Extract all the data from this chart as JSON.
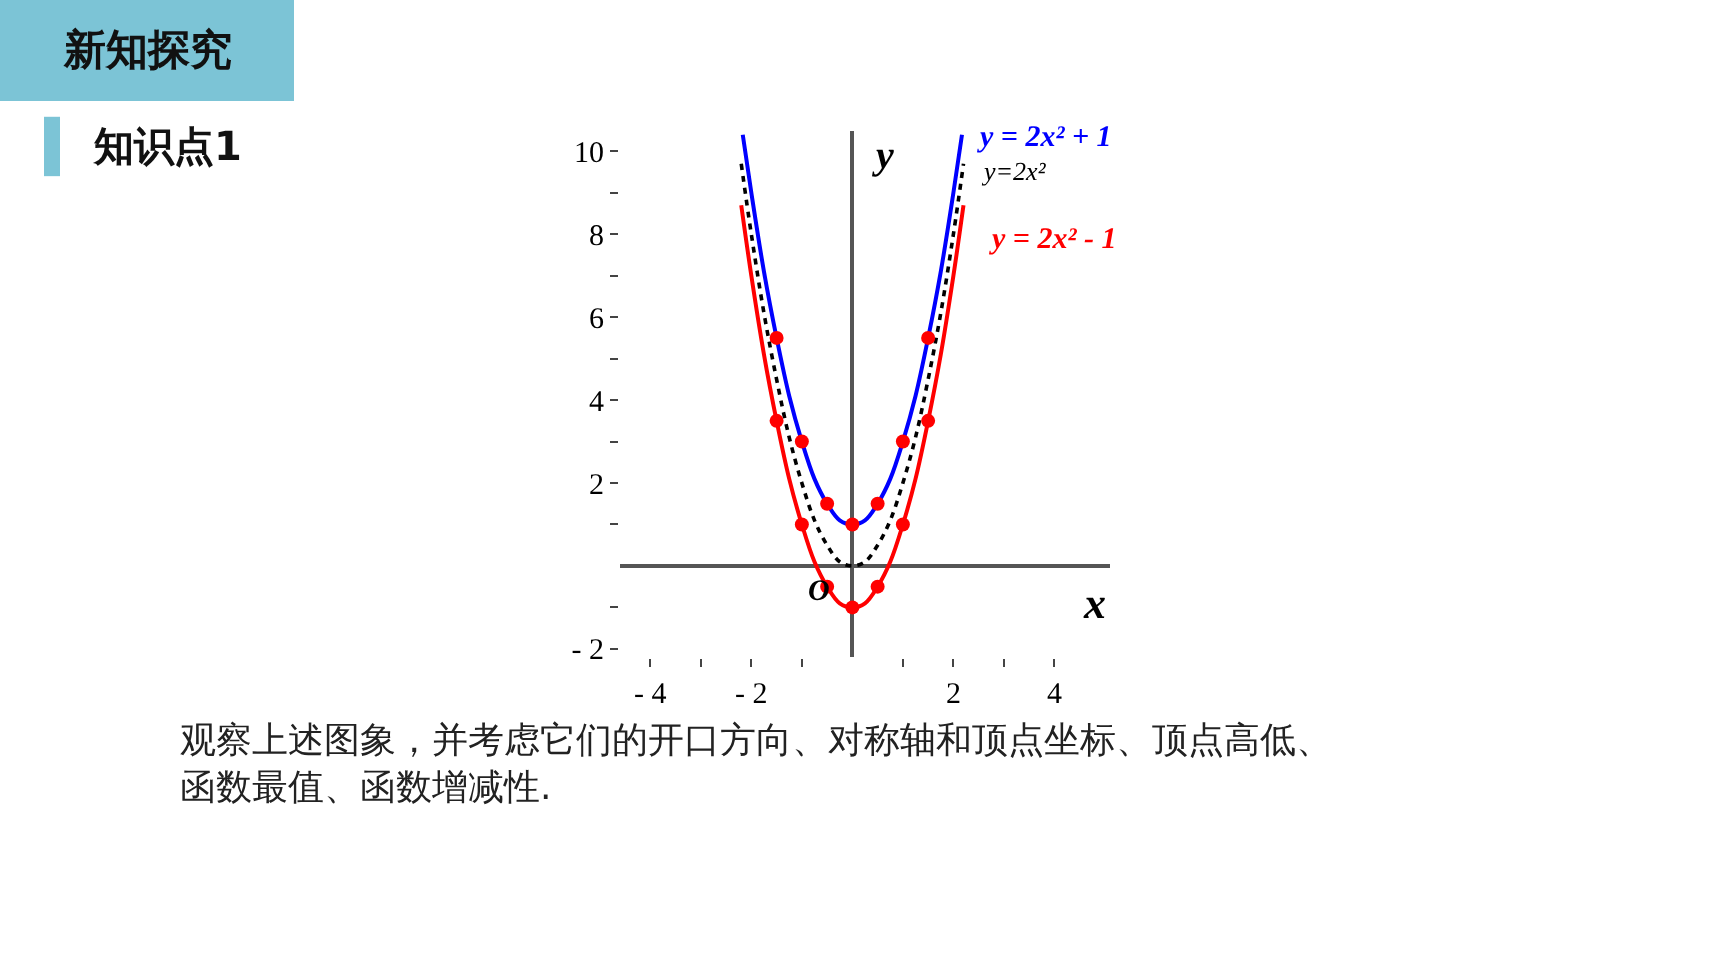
{
  "chart_data": {
    "type": "line",
    "title": "新知探究",
    "subtitle": "知识点1",
    "xlabel": "x",
    "ylabel": "y",
    "annotations": [
      {
        "text": "O",
        "x": 0,
        "y": 0
      },
      "观察上述图象，并考虑它们的开口方向、对称轴和顶点坐标、顶点高低、函数最值、函数增减性."
    ],
    "series": [
      {
        "name": "y = 2x² + 1",
        "color": "#0000ff",
        "line_style": "solid",
        "x": [
          -2.17,
          -2,
          -1.75,
          -1.5,
          -1.25,
          -1,
          -0.75,
          -0.5,
          -0.25,
          0,
          0.25,
          0.5,
          0.75,
          1,
          1.25,
          1.5,
          1.75,
          2,
          2.17
        ],
        "values": [
          10.4,
          9,
          7.1,
          5.5,
          4.1,
          3,
          2.1,
          1.5,
          1.1,
          1,
          1.1,
          1.5,
          2.1,
          3,
          4.1,
          5.5,
          7.1,
          9,
          10.4
        ]
      },
      {
        "name": "y=2x²",
        "color": "#000000",
        "line_style": "dotted",
        "x": [
          -2.2,
          -2,
          -1.75,
          -1.5,
          -1.25,
          -1,
          -0.75,
          -0.5,
          -0.25,
          0,
          0.25,
          0.5,
          0.75,
          1,
          1.25,
          1.5,
          1.75,
          2,
          2.2
        ],
        "values": [
          9.7,
          8,
          6.1,
          4.5,
          3.1,
          2,
          1.1,
          0.5,
          0.1,
          0,
          0.1,
          0.5,
          1.1,
          2,
          3.1,
          4.5,
          6.1,
          8,
          9.7
        ]
      },
      {
        "name": "y = 2x² - 1",
        "color": "#ff0000",
        "line_style": "solid",
        "x": [
          -2.2,
          -2,
          -1.75,
          -1.5,
          -1.25,
          -1,
          -0.75,
          -0.5,
          -0.25,
          0,
          0.25,
          0.5,
          0.75,
          1,
          1.25,
          1.5,
          1.75,
          2,
          2.2
        ],
        "values": [
          8.7,
          7,
          5.1,
          3.5,
          2.1,
          1,
          0.1,
          -0.5,
          -0.9,
          -1,
          -0.9,
          -0.5,
          0.1,
          1,
          2.1,
          3.5,
          5.1,
          7,
          8.7
        ]
      },
      {
        "type": "scatter",
        "marker": "circle",
        "color": "#ff0000",
        "x": [
          -1.5,
          -1,
          -0.5,
          0,
          0.5,
          1,
          1.5
        ],
        "values": [
          5.5,
          3,
          1.5,
          1,
          1.5,
          3,
          5.5
        ]
      },
      {
        "type": "scatter",
        "marker": "circle",
        "color": "#ff0000",
        "x": [
          -1.5,
          -1,
          -0.5,
          0,
          0.5,
          1,
          1.5
        ],
        "values": [
          3.5,
          1,
          -0.5,
          -1,
          -0.5,
          1,
          3.5
        ]
      }
    ],
    "xlim": [
      -4.6,
      5.1
    ],
    "ylim": [
      -2.2,
      10.5
    ],
    "xticks": [
      {
        "value": -4,
        "label": "- 4"
      },
      {
        "value": -3,
        "label": null
      },
      {
        "value": -2,
        "label": "- 2"
      },
      {
        "value": -1,
        "label": null
      },
      {
        "value": 1,
        "label": null
      },
      2,
      {
        "value": 3,
        "label": null
      },
      4
    ],
    "yticks": [
      {
        "value": -2,
        "label": "- 2"
      },
      {
        "value": -1,
        "label": null
      },
      {
        "value": 1,
        "label": null
      },
      2,
      {
        "value": 3,
        "label": null
      },
      4,
      {
        "value": 5,
        "label": null
      },
      6,
      {
        "value": 7,
        "label": null
      },
      8,
      {
        "value": 9,
        "label": null
      },
      10
    ],
    "grid": false,
    "legend": false
  }
}
